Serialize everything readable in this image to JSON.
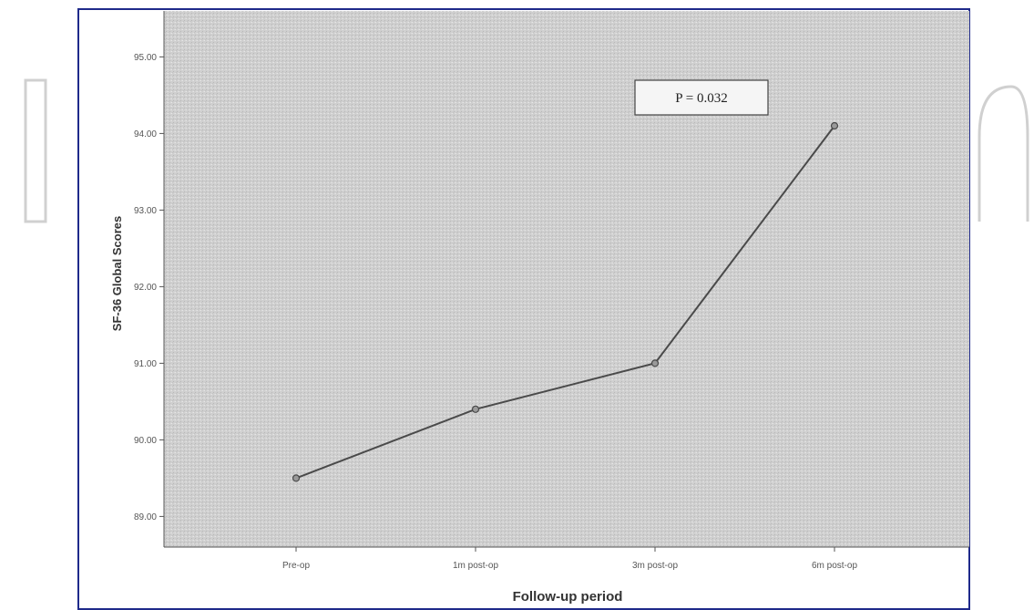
{
  "chart_data": {
    "type": "line",
    "categories": [
      "Pre-op",
      "1m post-op",
      "3m post-op",
      "6m post-op"
    ],
    "series": [
      {
        "values": [
          89.5,
          90.4,
          91.0,
          94.1
        ]
      }
    ],
    "y_ticks": [
      "89.00",
      "90.00",
      "91.00",
      "92.00",
      "93.00",
      "94.00",
      "95.00"
    ],
    "ylim": [
      88.6,
      95.6
    ],
    "xlabel": "Follow-up period",
    "ylabel": "SF-36 Global Scores",
    "annotation": "P = 0.032",
    "grid": false,
    "colors": {
      "plot_background": "#cfcfcf",
      "line": "#4a4a4a",
      "frame_border": "#1f2a8a",
      "watermark": "#d0d0d0"
    }
  }
}
